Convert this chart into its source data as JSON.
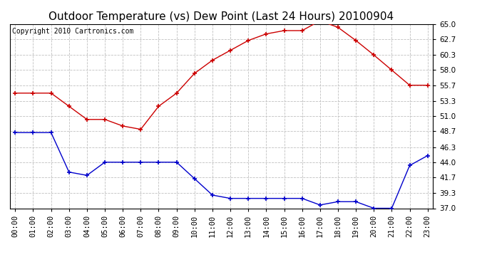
{
  "title": "Outdoor Temperature (vs) Dew Point (Last 24 Hours) 20100904",
  "copyright": "Copyright 2010 Cartronics.com",
  "x_labels": [
    "00:00",
    "01:00",
    "02:00",
    "03:00",
    "04:00",
    "05:00",
    "06:00",
    "07:00",
    "08:00",
    "09:00",
    "10:00",
    "11:00",
    "12:00",
    "13:00",
    "14:00",
    "15:00",
    "16:00",
    "17:00",
    "18:00",
    "19:00",
    "20:00",
    "21:00",
    "22:00",
    "23:00"
  ],
  "temp_data": [
    54.5,
    54.5,
    54.5,
    52.5,
    50.5,
    50.5,
    49.5,
    49.0,
    52.5,
    54.5,
    57.5,
    59.5,
    61.0,
    62.5,
    63.5,
    64.0,
    64.0,
    65.5,
    64.5,
    62.5,
    60.3,
    58.0,
    55.7,
    55.7
  ],
  "dew_data": [
    48.5,
    48.5,
    48.5,
    42.5,
    42.0,
    44.0,
    44.0,
    44.0,
    44.0,
    44.0,
    41.5,
    39.0,
    38.5,
    38.5,
    38.5,
    38.5,
    38.5,
    37.5,
    38.0,
    38.0,
    37.0,
    37.0,
    43.5,
    45.0
  ],
  "temp_color": "#cc0000",
  "dew_color": "#0000cc",
  "bg_color": "#ffffff",
  "plot_bg_color": "#ffffff",
  "grid_color": "#c0c0c0",
  "ylim": [
    37.0,
    65.0
  ],
  "yticks": [
    37.0,
    39.3,
    41.7,
    44.0,
    46.3,
    48.7,
    51.0,
    53.3,
    55.7,
    58.0,
    60.3,
    62.7,
    65.0
  ],
  "title_fontsize": 11,
  "axis_fontsize": 7.5,
  "copyright_fontsize": 7
}
